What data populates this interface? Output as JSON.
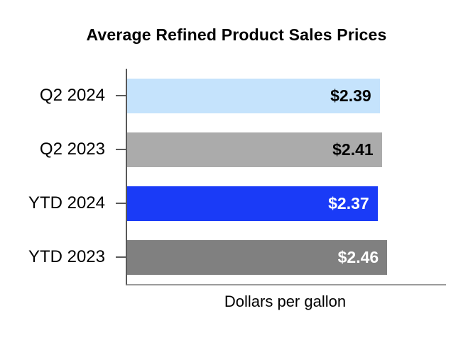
{
  "chart_data": {
    "type": "bar",
    "orientation": "horizontal",
    "title": "Average Refined Product Sales Prices",
    "xlabel": "Dollars per gallon",
    "categories": [
      "Q2 2024",
      "Q2 2023",
      "YTD 2024",
      "YTD 2023"
    ],
    "values": [
      2.39,
      2.41,
      2.37,
      2.46
    ],
    "value_labels": [
      "$2.39",
      "$2.41",
      "$2.37",
      "$2.46"
    ],
    "bar_colors": [
      "#c5e3fc",
      "#ababab",
      "#1a3bf7",
      "#808080"
    ],
    "value_label_colors": [
      "#000000",
      "#000000",
      "#ffffff",
      "#ffffff"
    ],
    "xlim": [
      0,
      3
    ],
    "grid": false,
    "legend": false,
    "axis_color_vertical": "#595959",
    "axis_color_horizontal": "#9b9b9b"
  }
}
